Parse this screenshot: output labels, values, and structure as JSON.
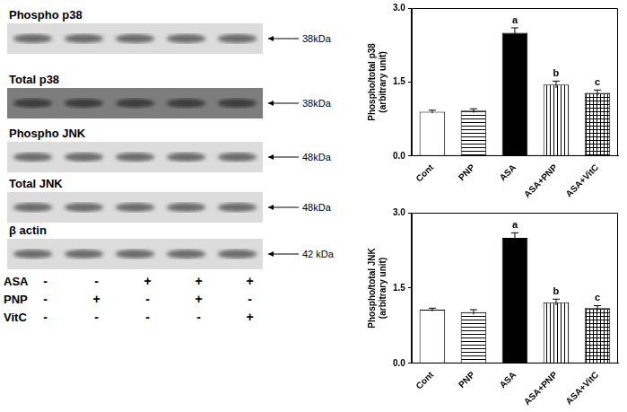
{
  "blot": {
    "rows": [
      {
        "label": "Phospho p38",
        "size": "38kDa"
      },
      {
        "label": "Total p38",
        "size": "38kDa"
      },
      {
        "label": "Phospho JNK",
        "size": "48kDa"
      },
      {
        "label": "Total JNK",
        "size": "48kDa"
      },
      {
        "label": "β actin",
        "size": "42 kDa"
      }
    ],
    "treatments": [
      {
        "label": "ASA",
        "signs": [
          "-",
          "-",
          "+",
          "+",
          "+"
        ]
      },
      {
        "label": "PNP",
        "signs": [
          "-",
          "+",
          "-",
          "+",
          "-"
        ]
      },
      {
        "label": "VitC",
        "signs": [
          "-",
          "-",
          "-",
          "-",
          "+"
        ]
      }
    ]
  },
  "chart_data": [
    {
      "type": "bar",
      "y_label": [
        "Phospho/total p38",
        "(arbitrary unit)"
      ],
      "categories": [
        "Cont",
        "PNP",
        "ASA",
        "ASA+PNP",
        "ASA+VitC"
      ],
      "values": [
        0.9,
        0.92,
        2.5,
        1.45,
        1.28
      ],
      "errors": [
        0.03,
        0.04,
        0.1,
        0.07,
        0.06
      ],
      "colors": [
        "#ffffff",
        "#ffffff",
        "#000000",
        "#ffffff",
        "#ffffff"
      ],
      "annotations": [
        {
          "category": "ASA",
          "text": "a"
        },
        {
          "category": "ASA+PNP",
          "text": "b"
        },
        {
          "category": "ASA+VitC",
          "text": "c"
        }
      ],
      "ylim": [
        0,
        3
      ],
      "yticks": [
        {
          "value": 0,
          "label": "0.0"
        },
        {
          "value": 1.5,
          "label": "1.5"
        },
        {
          "value": 3,
          "label": "3.0"
        }
      ],
      "grid": false
    },
    {
      "type": "bar",
      "y_label": [
        "Phospho/total JNK",
        "(arbitrary unit)"
      ],
      "categories": [
        "Cont",
        "PNP",
        "ASA",
        "ASA+PNP",
        "ASA+VitC"
      ],
      "values": [
        1.07,
        1.02,
        2.5,
        1.22,
        1.1
      ],
      "errors": [
        0.03,
        0.05,
        0.1,
        0.06,
        0.05
      ],
      "colors": [
        "#ffffff",
        "#ffffff",
        "#000000",
        "#ffffff",
        "#ffffff"
      ],
      "annotations": [
        {
          "category": "ASA",
          "text": "a"
        },
        {
          "category": "ASA+PNP",
          "text": "b"
        },
        {
          "category": "ASA+VitC",
          "text": "c"
        }
      ],
      "ylim": [
        0,
        3
      ],
      "yticks": [
        {
          "value": 0,
          "label": "0.0"
        },
        {
          "value": 1.5,
          "label": "1.5"
        },
        {
          "value": 3,
          "label": "3.0"
        }
      ],
      "grid": false
    }
  ]
}
